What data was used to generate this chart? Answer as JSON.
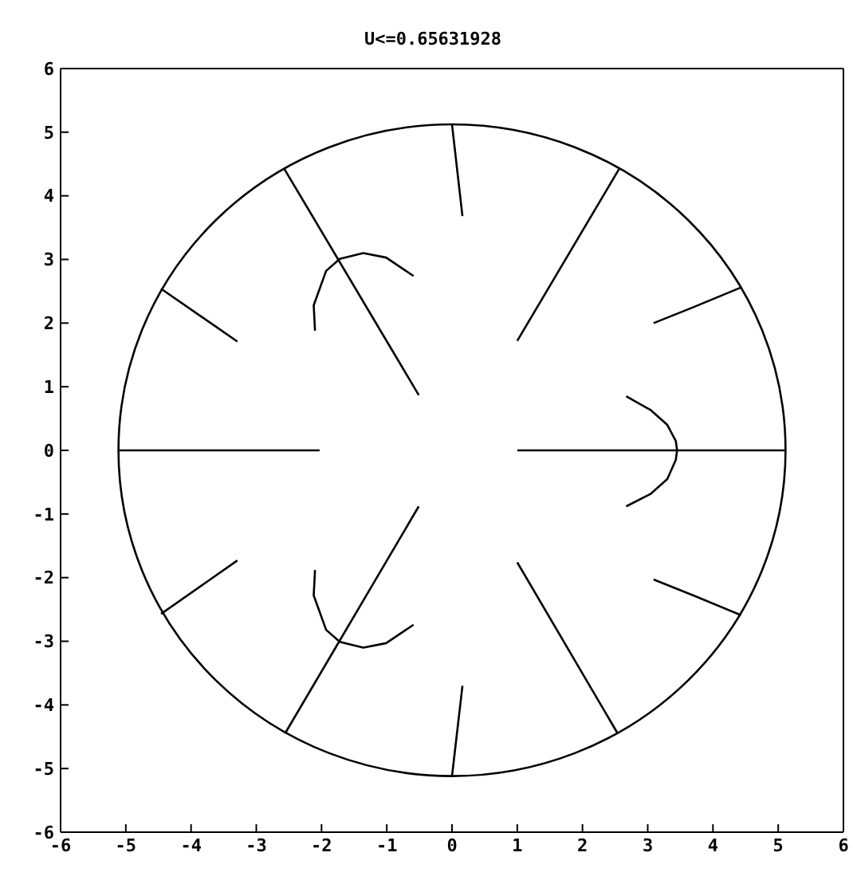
{
  "chart_data": {
    "type": "line",
    "title": "U<=0.65631928",
    "xlim": [
      -6,
      6
    ],
    "ylim": [
      -6,
      6
    ],
    "xticks": [
      -6,
      -5,
      -4,
      -3,
      -2,
      -1,
      0,
      1,
      2,
      3,
      4,
      5,
      6
    ],
    "yticks": [
      -6,
      -5,
      -4,
      -3,
      -2,
      -1,
      0,
      1,
      2,
      3,
      4,
      5,
      6
    ],
    "grid": false,
    "marker": "none",
    "line_style": "solid",
    "series": [
      {
        "color": "#000000",
        "x": [
          -5.12,
          -2.03
        ],
        "values": [
          0,
          0
        ]
      },
      {
        "color": "#000000",
        "x": [
          1.0,
          5.12
        ],
        "values": [
          0,
          0
        ]
      },
      {
        "color": "#000000",
        "x": [
          -2.58,
          -0.51
        ],
        "values": [
          4.44,
          0.87
        ]
      },
      {
        "color": "#000000",
        "x": [
          0,
          0.16
        ],
        "values": [
          5.12,
          3.68
        ]
      },
      {
        "color": "#000000",
        "x": [
          1.0,
          2.56
        ],
        "values": [
          1.72,
          4.42
        ]
      },
      {
        "color": "#000000",
        "x": [
          -4.46,
          -3.29
        ],
        "values": [
          2.54,
          1.71
        ]
      },
      {
        "color": "#000000",
        "x": [
          3.09,
          3.7,
          4.43
        ],
        "values": [
          2.0,
          2.25,
          2.56
        ]
      },
      {
        "color": "#000000",
        "x": [
          -2.1,
          -2.12,
          -1.93,
          -1.72,
          -1.36,
          -1.01,
          -0.59
        ],
        "values": [
          1.88,
          2.28,
          2.82,
          3.01,
          3.1,
          3.03,
          2.74
        ]
      },
      {
        "color": "#000000",
        "x": [
          2.67,
          3.05,
          3.3,
          3.43,
          3.45,
          3.43,
          3.3,
          3.05,
          2.67
        ],
        "values": [
          0.85,
          0.63,
          0.4,
          0.15,
          0,
          -0.15,
          -0.45,
          -0.68,
          -0.88
        ]
      },
      {
        "color": "#000000",
        "x": [
          -2.56,
          -0.51
        ],
        "values": [
          -4.45,
          -0.88
        ]
      },
      {
        "color": "#000000",
        "x": [
          0,
          0.16
        ],
        "values": [
          -5.12,
          -3.7
        ]
      },
      {
        "color": "#000000",
        "x": [
          1.0,
          2.54
        ],
        "values": [
          -1.76,
          -4.45
        ]
      },
      {
        "color": "#000000",
        "x": [
          -4.46,
          -3.29
        ],
        "values": [
          -2.57,
          -1.73
        ]
      },
      {
        "color": "#000000",
        "x": [
          3.09,
          3.7,
          4.43
        ],
        "values": [
          -2.03,
          -2.28,
          -2.59
        ]
      },
      {
        "color": "#000000",
        "x": [
          -2.1,
          -2.12,
          -1.93,
          -1.72,
          -1.36,
          -1.01,
          -0.59
        ],
        "values": [
          -1.88,
          -2.28,
          -2.82,
          -3.01,
          -3.1,
          -3.03,
          -2.74
        ]
      }
    ]
  }
}
